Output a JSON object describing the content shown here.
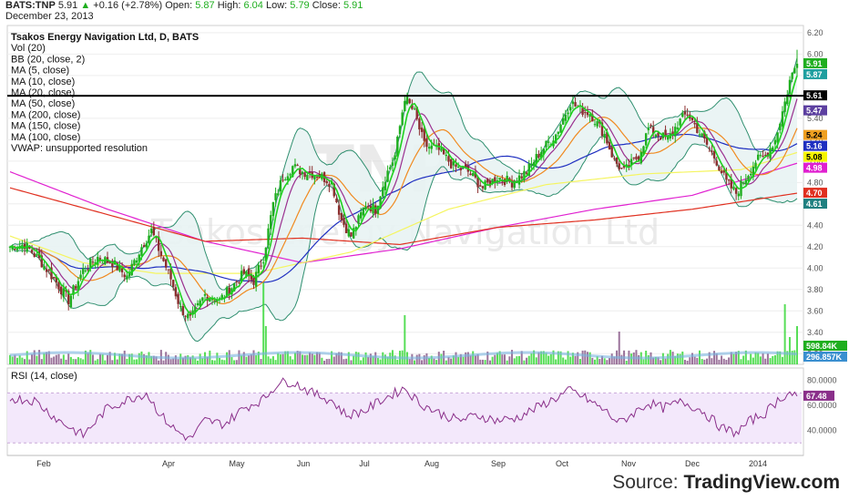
{
  "header": {
    "symbol": "BATS:TNP",
    "last": "5.91",
    "change_arrow": "▲",
    "change": "+0.16 (+2.78%)",
    "open_label": "Open:",
    "open": "5.87",
    "high_label": "High:",
    "high": "6.04",
    "low_label": "Low:",
    "low": "5.79",
    "close_label": "Close:",
    "close": "5.91",
    "date": "December 23, 2013"
  },
  "legend": [
    "Tsakos Energy Navigation Ltd, D, BATS",
    "Vol (20)",
    "BB (20, close, 2)",
    "MA (5, close)",
    "MA (10, close)",
    "MA (20, close)",
    "MA (50, close)",
    "MA (200, close)",
    "MA (150, close)",
    "MA (100, close)",
    "VWAP: unsupported resolution"
  ],
  "watermark": {
    "ticker": "TNP",
    "name": "Tsakos Energy Navigation Ltd"
  },
  "price_axis": {
    "ticks": [
      "6.20",
      "6.00",
      "5.80",
      "5.60",
      "5.40",
      "5.20",
      "5.00",
      "4.80",
      "4.60",
      "4.40",
      "4.20",
      "4.00",
      "3.80",
      "3.60",
      "3.40",
      "3.20"
    ]
  },
  "badges": [
    {
      "text": "5.91",
      "bg": "#1fae1f",
      "fg": "#ffffff",
      "value": 5.91
    },
    {
      "text": "5.87",
      "bg": "#1f9fa0",
      "fg": "#ffffff",
      "value": 5.87
    },
    {
      "text": "5.61",
      "bg": "#000000",
      "fg": "#ffffff",
      "value": 5.61
    },
    {
      "text": "5.47",
      "bg": "#5c3fa0",
      "fg": "#ffffff",
      "value": 5.47
    },
    {
      "text": "5.24",
      "bg": "#f0a020",
      "fg": "#000000",
      "value": 5.24
    },
    {
      "text": "5.16",
      "bg": "#1f2fc0",
      "fg": "#ffffff",
      "value": 5.16
    },
    {
      "text": "5.08",
      "bg": "#f5f500",
      "fg": "#000000",
      "value": 5.08
    },
    {
      "text": "4.98",
      "bg": "#e020d0",
      "fg": "#ffffff",
      "value": 4.98
    },
    {
      "text": "4.70",
      "bg": "#e03020",
      "fg": "#ffffff",
      "value": 4.7
    },
    {
      "text": "4.61",
      "bg": "#1f8080",
      "fg": "#ffffff",
      "value": 4.61
    }
  ],
  "volume_badges": [
    {
      "text": "598.84K",
      "bg": "#1fae1f",
      "fg": "#ffffff"
    },
    {
      "text": "296.857K",
      "bg": "#3a8fd0",
      "fg": "#ffffff"
    }
  ],
  "rsi": {
    "label": "RSI (14, close)",
    "ticks": [
      "80.0000",
      "60.0000",
      "40.0000"
    ],
    "badge": "67.48"
  },
  "x_axis": {
    "labels": [
      "Feb",
      "Apr",
      "May",
      "Jun",
      "Jul",
      "Aug",
      "Sep",
      "Oct",
      "Nov",
      "Dec",
      "2014"
    ]
  },
  "footer": {
    "prefix": "Source: ",
    "brand": "TradingView.com"
  },
  "colors": {
    "up_candle": "#1fae1f",
    "down_candle": "#8b2f2f",
    "bb": "#2f8f6f",
    "bb_fill": "#e8f3f3",
    "ma5": "#1fd01f",
    "ma10": "#9a2f8f",
    "ma20": "#f08a20",
    "ma50": "#1f2fc0",
    "ma200": "#e020d0",
    "ma150": "#e03020",
    "ma100": "#f5f560",
    "rsi": "#8a2f8a",
    "rsi_band": "#f3e8fb",
    "resistance": "#000000"
  },
  "chart_data": {
    "type": "candlestick",
    "title": "Tsakos Energy Navigation Ltd, D, BATS",
    "ylim": [
      3.1,
      6.25
    ],
    "resistance_level": 5.61,
    "x_labels": [
      "Feb",
      "Apr",
      "May",
      "Jun",
      "Jul",
      "Aug",
      "Sep",
      "Oct",
      "Nov",
      "Dec",
      "2014"
    ],
    "close_anchors": [
      [
        0,
        4.2
      ],
      [
        6,
        4.22
      ],
      [
        12,
        4.08
      ],
      [
        18,
        3.9
      ],
      [
        24,
        3.7
      ],
      [
        30,
        3.98
      ],
      [
        36,
        4.1
      ],
      [
        42,
        4.05
      ],
      [
        48,
        3.92
      ],
      [
        54,
        4.2
      ],
      [
        58,
        4.35
      ],
      [
        62,
        4.12
      ],
      [
        66,
        3.9
      ],
      [
        70,
        3.62
      ],
      [
        74,
        3.52
      ],
      [
        80,
        3.75
      ],
      [
        86,
        3.7
      ],
      [
        90,
        3.8
      ],
      [
        96,
        3.95
      ],
      [
        100,
        3.88
      ],
      [
        104,
        4.1
      ],
      [
        108,
        4.6
      ],
      [
        112,
        4.85
      ],
      [
        116,
        4.95
      ],
      [
        120,
        4.9
      ],
      [
        126,
        4.88
      ],
      [
        132,
        4.8
      ],
      [
        136,
        4.45
      ],
      [
        140,
        4.3
      ],
      [
        146,
        4.6
      ],
      [
        150,
        4.55
      ],
      [
        154,
        4.85
      ],
      [
        158,
        5.05
      ],
      [
        162,
        5.6
      ],
      [
        166,
        5.45
      ],
      [
        170,
        5.15
      ],
      [
        176,
        5.1
      ],
      [
        182,
        4.95
      ],
      [
        188,
        4.9
      ],
      [
        194,
        4.75
      ],
      [
        200,
        4.85
      ],
      [
        206,
        4.8
      ],
      [
        212,
        4.9
      ],
      [
        218,
        5.1
      ],
      [
        224,
        5.25
      ],
      [
        230,
        5.55
      ],
      [
        234,
        5.48
      ],
      [
        238,
        5.45
      ],
      [
        244,
        5.25
      ],
      [
        248,
        5.0
      ],
      [
        252,
        4.9
      ],
      [
        258,
        5.05
      ],
      [
        262,
        5.3
      ],
      [
        266,
        5.25
      ],
      [
        270,
        5.2
      ],
      [
        274,
        5.35
      ],
      [
        278,
        5.45
      ],
      [
        282,
        5.3
      ],
      [
        286,
        5.15
      ],
      [
        290,
        5.0
      ],
      [
        294,
        4.8
      ],
      [
        298,
        4.7
      ],
      [
        302,
        4.85
      ],
      [
        306,
        5.0
      ],
      [
        310,
        5.05
      ],
      [
        314,
        5.2
      ],
      [
        318,
        5.55
      ],
      [
        320,
        5.75
      ],
      [
        322,
        5.87
      ],
      [
        323,
        5.91
      ]
    ],
    "rsi_anchors": [
      [
        0,
        66
      ],
      [
        10,
        64
      ],
      [
        20,
        48
      ],
      [
        30,
        36
      ],
      [
        40,
        58
      ],
      [
        50,
        66
      ],
      [
        56,
        70
      ],
      [
        62,
        52
      ],
      [
        68,
        40
      ],
      [
        74,
        33
      ],
      [
        80,
        48
      ],
      [
        88,
        45
      ],
      [
        96,
        58
      ],
      [
        104,
        65
      ],
      [
        110,
        78
      ],
      [
        116,
        79
      ],
      [
        124,
        70
      ],
      [
        132,
        64
      ],
      [
        138,
        52
      ],
      [
        146,
        56
      ],
      [
        152,
        64
      ],
      [
        158,
        70
      ],
      [
        162,
        74
      ],
      [
        168,
        62
      ],
      [
        176,
        54
      ],
      [
        184,
        48
      ],
      [
        192,
        52
      ],
      [
        200,
        48
      ],
      [
        208,
        50
      ],
      [
        216,
        58
      ],
      [
        224,
        66
      ],
      [
        230,
        72
      ],
      [
        236,
        66
      ],
      [
        244,
        56
      ],
      [
        250,
        46
      ],
      [
        256,
        54
      ],
      [
        262,
        62
      ],
      [
        268,
        58
      ],
      [
        276,
        63
      ],
      [
        284,
        56
      ],
      [
        292,
        42
      ],
      [
        298,
        38
      ],
      [
        304,
        48
      ],
      [
        310,
        54
      ],
      [
        316,
        66
      ],
      [
        320,
        70
      ],
      [
        323,
        67.5
      ]
    ],
    "volume_spikes": [
      [
        104,
        0.75
      ],
      [
        105,
        0.35
      ],
      [
        162,
        0.45
      ],
      [
        250,
        0.3
      ],
      [
        318,
        0.55
      ],
      [
        320,
        0.25
      ],
      [
        323,
        0.35
      ]
    ],
    "ma200_anchors": [
      [
        0,
        4.9
      ],
      [
        40,
        4.55
      ],
      [
        80,
        4.25
      ],
      [
        120,
        4.05
      ],
      [
        160,
        4.18
      ],
      [
        200,
        4.38
      ],
      [
        240,
        4.55
      ],
      [
        280,
        4.68
      ],
      [
        323,
        4.98
      ]
    ],
    "ma150_anchors": [
      [
        0,
        4.75
      ],
      [
        40,
        4.5
      ],
      [
        80,
        4.25
      ],
      [
        120,
        4.28
      ],
      [
        160,
        4.22
      ],
      [
        200,
        4.38
      ],
      [
        240,
        4.45
      ],
      [
        280,
        4.55
      ],
      [
        323,
        4.7
      ]
    ],
    "ma100_anchors": [
      [
        0,
        4.3
      ],
      [
        30,
        4.05
      ],
      [
        60,
        3.95
      ],
      [
        100,
        3.95
      ],
      [
        140,
        4.15
      ],
      [
        180,
        4.55
      ],
      [
        220,
        4.78
      ],
      [
        260,
        4.88
      ],
      [
        300,
        4.92
      ],
      [
        323,
        5.08
      ]
    ]
  }
}
